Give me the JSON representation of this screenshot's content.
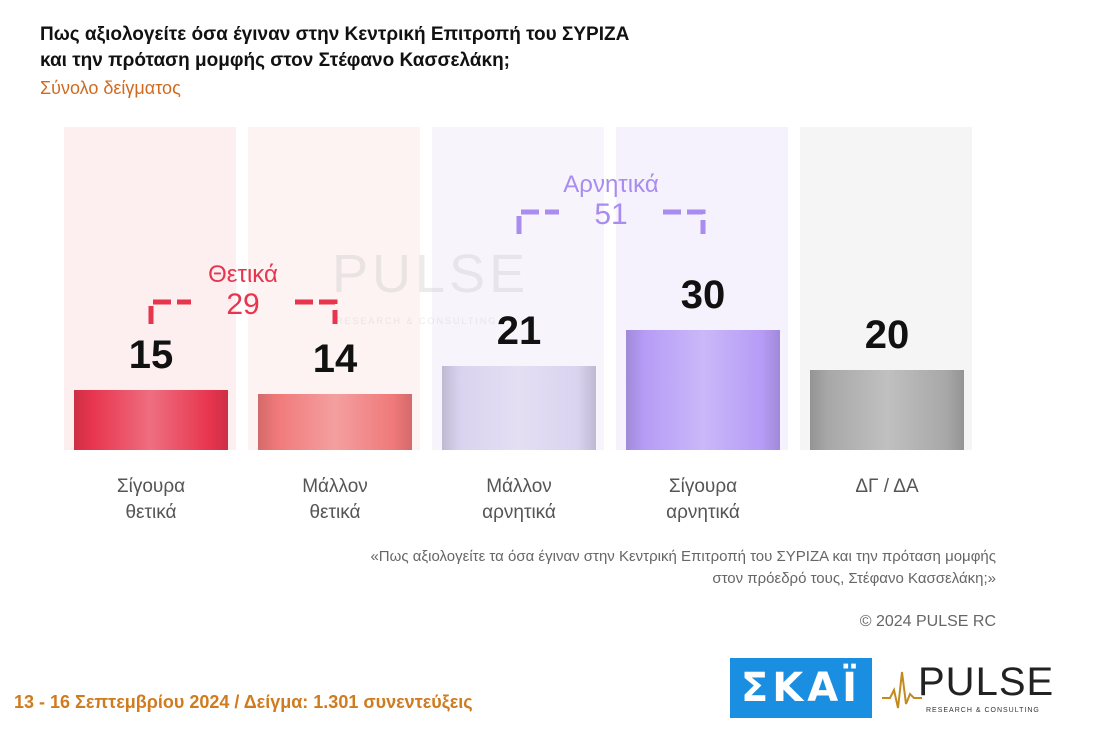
{
  "title_line1": "Πως αξιολογείτε όσα έγιναν στην Κεντρική Επιτροπή του ΣΥΡΙΖΑ",
  "title_line2": "και την πρόταση μομφής στον Στέφανο Κασσελάκη;",
  "subtitle": "Σύνολο δείγματος",
  "question_line1": "«Πως αξιολογείτε τα όσα έγιναν στην Κεντρική Επιτροπή του ΣΥΡΙΖΑ και την πρόταση μομφής",
  "question_line2": "στον πρόεδρό τους, Στέφανο Κασσελάκη;»",
  "copyright": "© 2024 PULSE RC",
  "footer": "13 - 16 Σεπτεμβρίου 2024  /  Δείγμα:  1.301 συνεντεύξεις",
  "logos": {
    "skai": "ΣΚΑΪ",
    "pulse": "PULSE",
    "pulse_sub": "RESEARCH & CONSULTING"
  },
  "watermark": {
    "word": "PULSE",
    "sub": "RESEARCH & CONSULTING"
  },
  "chart_data": {
    "type": "bar",
    "categories": [
      [
        "Σίγουρα",
        "θετικά"
      ],
      [
        "Μάλλον",
        "θετικά"
      ],
      [
        "Μάλλον",
        "αρνητικά"
      ],
      [
        "Σίγουρα",
        "αρνητικά"
      ],
      [
        "ΔΓ / ΔΑ"
      ]
    ],
    "values": [
      15,
      14,
      21,
      30,
      20
    ],
    "colors": [
      "#e8354e",
      "#f0797a",
      "#d9d3ef",
      "#b69cf6",
      "#a8a8a8"
    ],
    "groups": [
      {
        "label": "Θετικά",
        "total": "29",
        "from": 0,
        "to": 1,
        "color": "#e8354e"
      },
      {
        "label": "Αρνητικά",
        "total": "51",
        "from": 2,
        "to": 3,
        "color": "#a98cf0"
      }
    ]
  }
}
